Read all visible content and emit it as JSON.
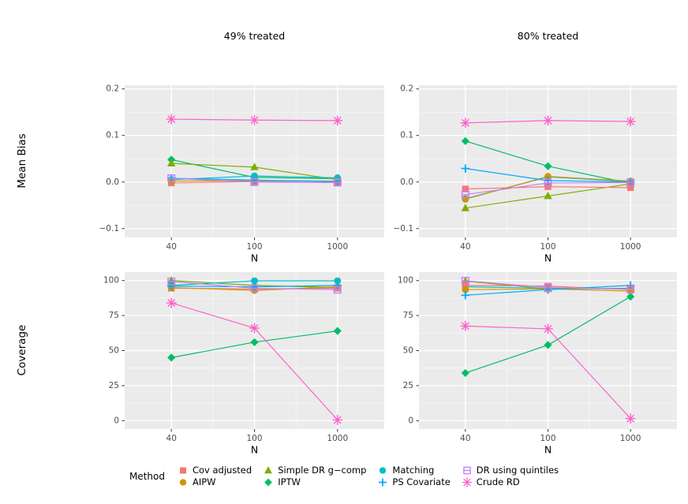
{
  "figure": {
    "background": "#ffffff",
    "panel_background": "#ebebeb",
    "grid_major_color": "#ffffff",
    "grid_minor_color": "#ffffff",
    "tick_mark_color": "#333333",
    "axis_text_color": "#4d4d4d",
    "title_color": "#000000"
  },
  "facets": {
    "col_titles": [
      "49% treated",
      "80% treated"
    ],
    "row_titles": [
      "Mean Bias",
      "Coverage"
    ],
    "xlabel": "N"
  },
  "methods": [
    {
      "name": "Cov adjusted",
      "color": "#F8766D",
      "shape": "square"
    },
    {
      "name": "AIPW",
      "color": "#CD9600",
      "shape": "circle"
    },
    {
      "name": "Simple DR g−comp",
      "color": "#7CAE00",
      "shape": "triangle"
    },
    {
      "name": "IPTW",
      "color": "#00BE67",
      "shape": "diamond"
    },
    {
      "name": "Matching",
      "color": "#00BFC4",
      "shape": "circle"
    },
    {
      "name": "PS Covariate",
      "color": "#00A9FF",
      "shape": "plus"
    },
    {
      "name": "DR using quintiles",
      "color": "#C77CFF",
      "shape": "square-minus"
    },
    {
      "name": "Crude RD",
      "color": "#FF61CC",
      "shape": "asterisk"
    }
  ],
  "legend": {
    "title": "Method"
  },
  "chart_data": [
    {
      "type": "line",
      "title": "49% treated",
      "ylabel": "Mean Bias",
      "xlabel": "N",
      "x": [
        40,
        100,
        1000
      ],
      "xticks": [
        "40",
        "100",
        "1000"
      ],
      "ylim": [
        -0.119,
        0.208
      ],
      "yticks": [
        {
          "v": 0.2,
          "label": "0.2"
        },
        {
          "v": 0.1,
          "label": "0.1"
        },
        {
          "v": 0.0,
          "label": "0.0"
        },
        {
          "v": -0.1,
          "label": "−0.1"
        }
      ],
      "series": [
        {
          "name": "IPTW",
          "values": [
            0.048,
            0.01,
            0.007
          ]
        },
        {
          "name": "Simple DR g−comp",
          "values": [
            0.04,
            0.032,
            0.005
          ]
        },
        {
          "name": "Matching",
          "values": [
            0.005,
            0.013,
            0.009
          ]
        },
        {
          "name": "Cov adjusted",
          "values": [
            -0.002,
            0.001,
            -0.001
          ]
        },
        {
          "name": "AIPW",
          "values": [
            0.002,
            0.003,
            0.002
          ]
        },
        {
          "name": "PS Covariate",
          "values": [
            0.008,
            0.004,
            0.001
          ]
        },
        {
          "name": "DR using quintiles",
          "values": [
            0.008,
            0.0,
            -0.001
          ]
        },
        {
          "name": "Crude RD",
          "values": [
            0.135,
            0.133,
            0.132
          ]
        }
      ]
    },
    {
      "type": "line",
      "title": "80% treated",
      "ylabel": "Mean Bias",
      "xlabel": "N",
      "x": [
        40,
        100,
        1000
      ],
      "xticks": [
        "40",
        "100",
        "1000"
      ],
      "ylim": [
        -0.119,
        0.208
      ],
      "yticks": [
        {
          "v": 0.2,
          "label": "0.2"
        },
        {
          "v": 0.1,
          "label": "0.1"
        },
        {
          "v": 0.0,
          "label": "0.0"
        },
        {
          "v": -0.1,
          "label": "−0.1"
        }
      ],
      "series": [
        {
          "name": "IPTW",
          "values": [
            0.088,
            0.034,
            -0.003
          ]
        },
        {
          "name": "Simple DR g−comp",
          "values": [
            -0.056,
            -0.03,
            -0.004
          ]
        },
        {
          "name": "Matching",
          "values": [
            -0.036,
            0.011,
            0.001
          ]
        },
        {
          "name": "Cov adjusted",
          "values": [
            -0.015,
            -0.01,
            -0.012
          ]
        },
        {
          "name": "AIPW",
          "values": [
            -0.037,
            0.012,
            0.002
          ]
        },
        {
          "name": "PS Covariate",
          "values": [
            0.029,
            0.003,
            0.0
          ]
        },
        {
          "name": "DR using quintiles",
          "values": [
            -0.027,
            -0.002,
            -0.001
          ]
        },
        {
          "name": "Crude RD",
          "values": [
            0.127,
            0.132,
            0.13
          ]
        }
      ]
    },
    {
      "type": "line",
      "title": "49% treated",
      "ylabel": "Coverage",
      "xlabel": "N",
      "x": [
        40,
        100,
        1000
      ],
      "xticks": [
        "40",
        "100",
        "1000"
      ],
      "ylim": [
        -6,
        106
      ],
      "yticks": [
        {
          "v": 100,
          "label": "100"
        },
        {
          "v": 75,
          "label": "75"
        },
        {
          "v": 50,
          "label": "50"
        },
        {
          "v": 25,
          "label": "25"
        },
        {
          "v": 0,
          "label": "0"
        }
      ],
      "series": [
        {
          "name": "IPTW",
          "values": [
            45,
            56,
            64
          ]
        },
        {
          "name": "Simple DR g−comp",
          "values": [
            100,
            96.5,
            95
          ]
        },
        {
          "name": "Matching",
          "values": [
            96.5,
            99.8,
            99.8
          ]
        },
        {
          "name": "Cov adjusted",
          "values": [
            94.5,
            94,
            94.5
          ]
        },
        {
          "name": "AIPW",
          "values": [
            95,
            93,
            95.5
          ]
        },
        {
          "name": "PS Covariate",
          "values": [
            96,
            95.5,
            96.5
          ]
        },
        {
          "name": "DR using quintiles",
          "values": [
            99.3,
            94.5,
            93.5
          ]
        },
        {
          "name": "Crude RD",
          "values": [
            84,
            66,
            0.5
          ]
        }
      ]
    },
    {
      "type": "line",
      "title": "80% treated",
      "ylabel": "Coverage",
      "xlabel": "N",
      "x": [
        40,
        100,
        1000
      ],
      "xticks": [
        "40",
        "100",
        "1000"
      ],
      "ylim": [
        -6,
        106
      ],
      "yticks": [
        {
          "v": 100,
          "label": "100"
        },
        {
          "v": 75,
          "label": "75"
        },
        {
          "v": 50,
          "label": "50"
        },
        {
          "v": 25,
          "label": "25"
        },
        {
          "v": 0,
          "label": "0"
        }
      ],
      "series": [
        {
          "name": "IPTW",
          "values": [
            34,
            54,
            88.5
          ]
        },
        {
          "name": "Simple DR g−comp",
          "values": [
            99.5,
            94,
            94.5
          ]
        },
        {
          "name": "Matching",
          "values": [
            95.5,
            94.5,
            94
          ]
        },
        {
          "name": "Cov adjusted",
          "values": [
            96.5,
            96,
            93.5
          ]
        },
        {
          "name": "AIPW",
          "values": [
            93.5,
            94,
            92.5
          ]
        },
        {
          "name": "PS Covariate",
          "values": [
            89.5,
            93.5,
            96.5
          ]
        },
        {
          "name": "DR using quintiles",
          "values": [
            99.8,
            95,
            93.8
          ]
        },
        {
          "name": "Crude RD",
          "values": [
            67.5,
            65.5,
            1.5
          ]
        }
      ]
    }
  ]
}
